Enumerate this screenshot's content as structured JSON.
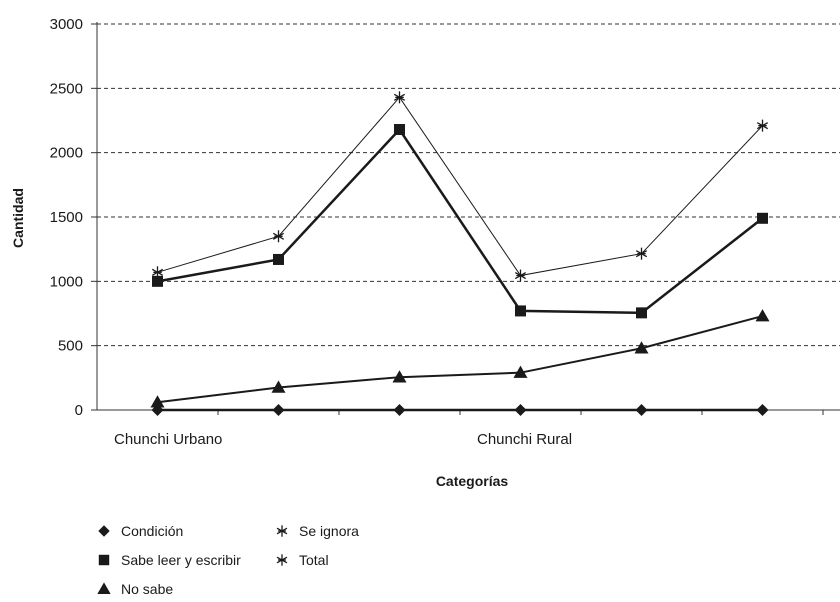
{
  "chart_data": {
    "type": "line",
    "title": "",
    "xlabel": "Categorías",
    "ylabel": "Cantidad",
    "ylim": [
      0,
      3000
    ],
    "yticks": [
      0,
      500,
      1000,
      1500,
      2000,
      2500,
      3000
    ],
    "grid": "horizontal dashed",
    "legend_position": "bottom-left",
    "x": [
      1,
      2,
      3,
      4,
      5,
      6
    ],
    "x_tick_labels": [
      "Chunchi Urbano",
      "",
      "",
      "Chunchi Rural",
      "",
      ""
    ],
    "series": [
      {
        "name": "Condición",
        "marker": "diamond",
        "values": [
          0,
          0,
          0,
          0,
          0,
          0
        ]
      },
      {
        "name": "Sabe leer y escribir",
        "marker": "square",
        "values": [
          1000,
          1170,
          2180,
          770,
          755,
          1490
        ]
      },
      {
        "name": "No sabe",
        "marker": "triangle",
        "values": [
          60,
          175,
          255,
          290,
          480,
          730
        ]
      },
      {
        "name": "Se ignora",
        "marker": "asterisk",
        "values": [
          0,
          0,
          0,
          0,
          0,
          0
        ]
      },
      {
        "name": "Total",
        "marker": "asterisk",
        "values": [
          1070,
          1350,
          2430,
          1045,
          1215,
          2210
        ]
      }
    ]
  }
}
